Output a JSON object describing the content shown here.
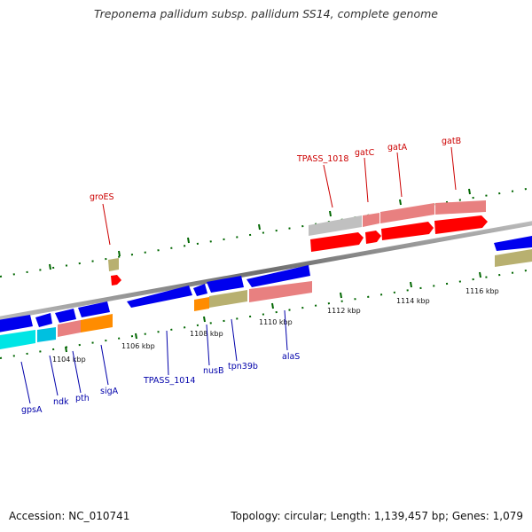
{
  "title": "Treponema pallidum subsp. pallidum SS14, complete genome",
  "accession": "Accession: NC_010741",
  "summary": "Topology: circular; Length: 1,139,457 bp; Genes: 1,079",
  "colors": {
    "backbone": "#8a8a8a",
    "cds_forward_outer": "#ff0000",
    "cds_reverse_outer": "#0000ee",
    "label_top": "#cc0000",
    "label_bottom": "#0000aa",
    "tick_green": "#006600",
    "feature_pink": "#e88080",
    "feature_grey": "#c0c0c0",
    "feature_khaki": "#b8b070",
    "feature_cyan": "#00e5e5",
    "feature_orange": "#ff8c00"
  },
  "ticks": [
    "1104 kbp",
    "1106 kbp",
    "1108 kbp",
    "1110 kbp",
    "1112 kbp",
    "1114 kbp",
    "1116 kbp"
  ],
  "genes_top": [
    "groES",
    "TPASS_1018",
    "gatC",
    "gatA",
    "gatB"
  ],
  "genes_bottom": [
    "gpsA",
    "ndk",
    "pth",
    "sigA",
    "TPASS_1014",
    "nusB",
    "tpn39b",
    "alaS"
  ]
}
